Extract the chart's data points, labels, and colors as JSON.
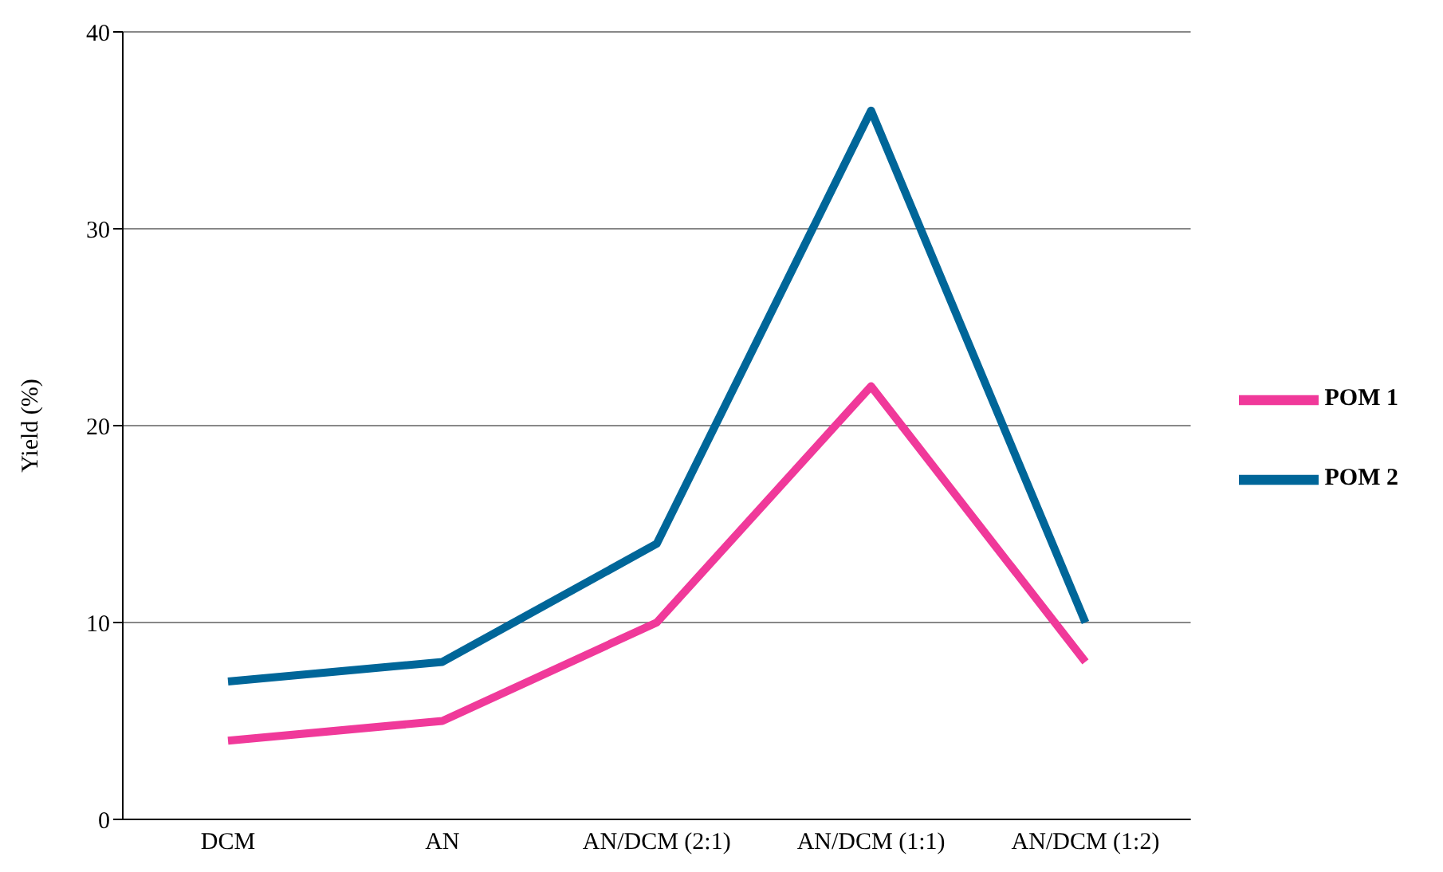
{
  "chart_data": {
    "type": "line",
    "ylabel": "Yield (%)",
    "categories": [
      "DCM",
      "AN",
      "AN/DCM (2:1)",
      "AN/DCM (1:1)",
      "AN/DCM (1:2)"
    ],
    "series": [
      {
        "name": "POM 1",
        "color": "#f0399a",
        "values": [
          4,
          5,
          10,
          22,
          8
        ]
      },
      {
        "name": "POM 2",
        "color": "#006699",
        "values": [
          7,
          8,
          14,
          36,
          10
        ]
      }
    ],
    "ylim": [
      0,
      40
    ],
    "yticks": [
      0,
      10,
      20,
      30,
      40
    ],
    "grid": "y",
    "legend": "right",
    "marker": "none",
    "line_style": "solid"
  }
}
